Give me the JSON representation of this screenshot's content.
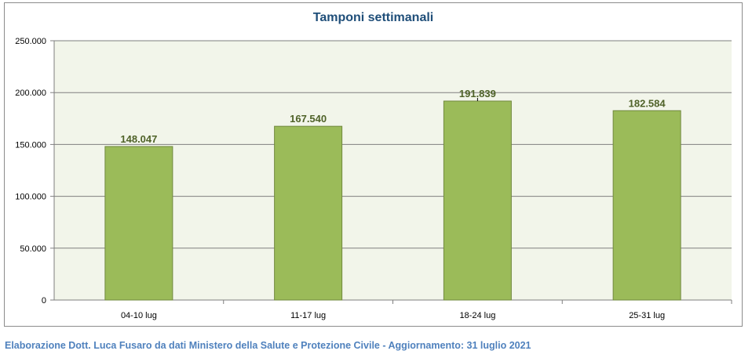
{
  "chart_data": {
    "type": "bar",
    "title": "Tamponi settimanali",
    "categories": [
      "04-10 lug",
      "11-17 lug",
      "18-24 lug",
      "25-31 lug"
    ],
    "values": [
      148047,
      167540,
      191839,
      182584
    ],
    "value_labels": [
      "148.047",
      "167.540",
      "191.839",
      "182.584"
    ],
    "ylim": [
      0,
      250000
    ],
    "yticks": [
      0,
      50000,
      100000,
      150000,
      200000,
      250000
    ],
    "ytick_labels": [
      "0",
      "50.000",
      "100.000",
      "150.000",
      "200.000",
      "250.000"
    ],
    "xlabel": "",
    "ylabel": "",
    "grid": true,
    "legend": "none",
    "colors": {
      "bar_fill": "#9bbb59",
      "bar_stroke": "#71893f",
      "plot_background": "#f2f5ea",
      "gridline": "#7f7f7f",
      "data_label": "#4f6228",
      "title": "#1f4e79"
    }
  },
  "footer": {
    "text": "Elaborazione Dott. Luca Fusaro da dati Ministero della Salute e Protezione Civile - Aggiornamento: 31 luglio 2021",
    "color": "#4f81bd"
  }
}
